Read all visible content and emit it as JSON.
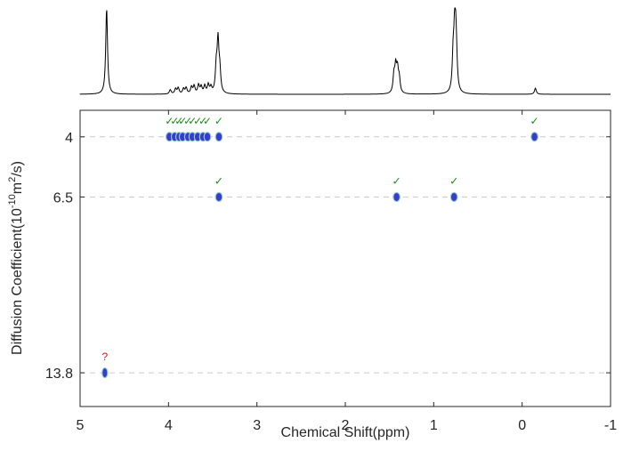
{
  "chart_data": {
    "type": "scatter",
    "title": "",
    "xlabel": "Chemical Shift(ppm)",
    "ylabel_base": "Diffusion Coefficient(10",
    "ylabel_exp1": "-10",
    "ylabel_mid": "m",
    "ylabel_exp2": "2",
    "ylabel_end": "/s)",
    "xlim": [
      5,
      -1
    ],
    "x_reversed": true,
    "ylim": [
      2.9,
      15.2
    ],
    "x_ticks": [
      5,
      4,
      3,
      2,
      1,
      0,
      -1
    ],
    "y_ticks": [
      4,
      6.5,
      13.8
    ],
    "grid": "dashed horizontal lines at y ticks",
    "colors": {
      "spot": "#3a3acc",
      "spot_alt": "#8fd0c8",
      "check": "#1a8c1a",
      "question": "#e01919",
      "axis": "#262626",
      "spectrum": "#000000"
    },
    "series": [
      {
        "y": 4,
        "x": [
          3.99,
          3.93,
          3.88,
          3.84,
          3.78,
          3.73,
          3.67,
          3.61,
          3.56,
          3.43,
          -0.14
        ],
        "label": "✓"
      },
      {
        "y": 6.5,
        "x": [
          3.43,
          1.42,
          0.77
        ],
        "label": "✓"
      },
      {
        "y": 13.8,
        "x": [
          4.72
        ],
        "label": "?"
      }
    ],
    "spectrum_1d": {
      "peaks": [
        {
          "x": 4.7,
          "h": 1.0
        },
        {
          "x": 3.98,
          "h": 0.05
        },
        {
          "x": 3.92,
          "h": 0.06
        },
        {
          "x": 3.89,
          "h": 0.07
        },
        {
          "x": 3.83,
          "h": 0.06
        },
        {
          "x": 3.8,
          "h": 0.07
        },
        {
          "x": 3.74,
          "h": 0.08
        },
        {
          "x": 3.71,
          "h": 0.09
        },
        {
          "x": 3.66,
          "h": 0.1
        },
        {
          "x": 3.63,
          "h": 0.08
        },
        {
          "x": 3.59,
          "h": 0.09
        },
        {
          "x": 3.55,
          "h": 0.1
        },
        {
          "x": 3.52,
          "h": 0.07
        },
        {
          "x": 3.46,
          "h": 0.28
        },
        {
          "x": 3.44,
          "h": 0.58
        },
        {
          "x": 3.42,
          "h": 0.24
        },
        {
          "x": 1.45,
          "h": 0.2
        },
        {
          "x": 1.43,
          "h": 0.28
        },
        {
          "x": 1.41,
          "h": 0.25
        },
        {
          "x": 1.39,
          "h": 0.16
        },
        {
          "x": 0.78,
          "h": 0.4
        },
        {
          "x": 0.76,
          "h": 0.88
        },
        {
          "x": 0.745,
          "h": 0.42
        },
        {
          "x": -0.15,
          "h": 0.07
        }
      ]
    }
  }
}
